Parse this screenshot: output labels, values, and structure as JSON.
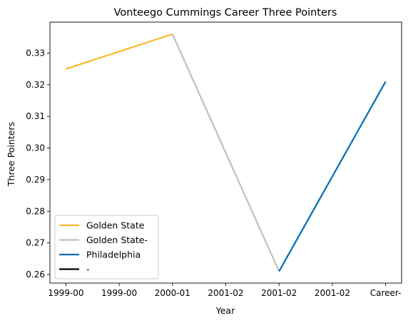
{
  "chart_data": {
    "type": "line",
    "title": "Vonteego Cummings Career Three Pointers",
    "xlabel": "Year",
    "ylabel": "Three Pointers",
    "x_tick_labels": [
      "1999-00",
      "1999-00",
      "2000-01",
      "2001-02",
      "2001-02",
      "2001-02",
      "Career-"
    ],
    "ylim": [
      0.2573,
      0.3398
    ],
    "y_ticks": [
      0.26,
      0.27,
      0.28,
      0.29,
      0.3,
      0.31,
      0.32,
      0.33
    ],
    "y_tick_labels": [
      "0.26",
      "0.27",
      "0.28",
      "0.29",
      "0.30",
      "0.31",
      "0.32",
      "0.33"
    ],
    "grid": false,
    "legend_position": "lower-left",
    "series": [
      {
        "name": "Golden State",
        "color": "#FDB927",
        "points": [
          [
            0,
            0.325
          ],
          [
            2,
            0.336
          ]
        ]
      },
      {
        "name": "Golden State-",
        "color": "#BEC0C2",
        "points": [
          [
            2,
            0.336
          ],
          [
            4,
            0.261
          ]
        ]
      },
      {
        "name": "Philadelphia",
        "color": "#006BB6",
        "points": [
          [
            4,
            0.261
          ],
          [
            6,
            0.321
          ]
        ]
      },
      {
        "name": "-",
        "color": "#000000",
        "points": []
      }
    ]
  }
}
